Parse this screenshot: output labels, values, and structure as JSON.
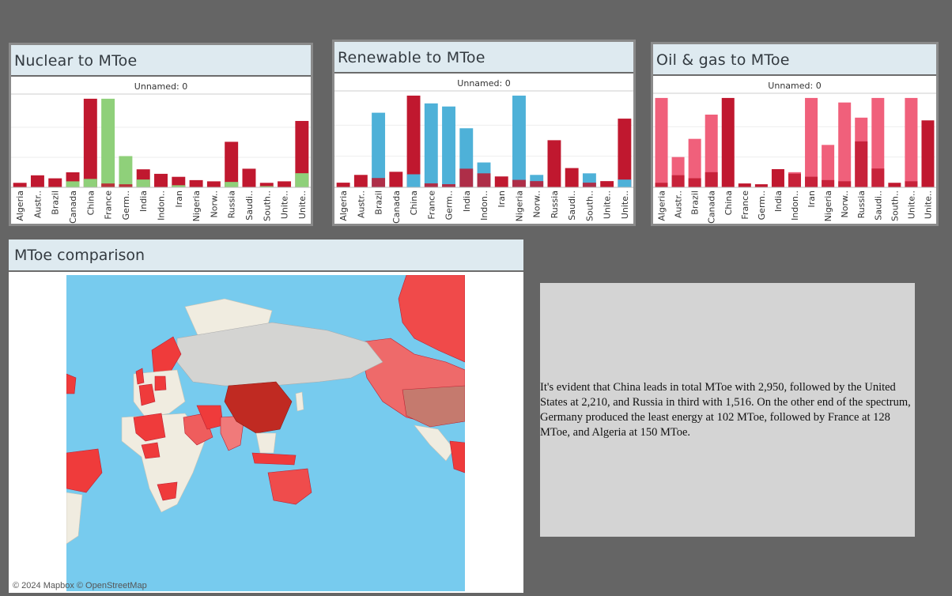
{
  "panels": {
    "nuclear": {
      "title": "Nuclear to MToe"
    },
    "renewable": {
      "title": "Renewable to MToe"
    },
    "oilgas": {
      "title": "Oil & gas to MToe"
    },
    "map": {
      "title": "MToe comparison",
      "credit": "© 2024 Mapbox © OpenStreetMap"
    }
  },
  "summary_text": "It's evident that China leads in total MToe with 2,950, followed by the United States at 2,210, and Russia in third with 1,516. On the other end of the spectrum, Germany produced the least energy at 102 MToe, followed by France at 128 MToe, and Algeria at 150 MToe.",
  "colors": {
    "total": "#c0182f",
    "nuclear": "#8fd07a",
    "renewable": "#4eb1d8",
    "oilgas": "#f0607b",
    "ocean": "#77cbee",
    "land_none": "#f0ece0",
    "land_data": "#f04a4a"
  },
  "chart_data": [
    {
      "type": "bar",
      "title": "Nuclear to MToe",
      "subtitle": "Unnamed: 0",
      "categories": [
        "Algeria",
        "Austr..",
        "Brazil",
        "Canada",
        "China",
        "France",
        "Germ..",
        "India",
        "Indon..",
        "Iran",
        "Nigeria",
        "Norw..",
        "Russia",
        "Saudi..",
        "South..",
        "Unite..",
        "Unite.."
      ],
      "series": [
        {
          "values": [
            150,
            400,
            300,
            500,
            2950,
            128,
            102,
            600,
            450,
            350,
            240,
            200,
            1516,
            620,
            150,
            200,
            2210
          ]
        },
        {
          "values": [
            0,
            0,
            15,
            200,
            280,
            2950,
            1040,
            260,
            0,
            70,
            0,
            0,
            180,
            0,
            40,
            0,
            470
          ]
        }
      ],
      "ylim": [
        0,
        3000
      ]
    },
    {
      "type": "bar",
      "title": "Renewable to MToe",
      "subtitle": "Unnamed: 0",
      "categories": [
        "Algeria",
        "Austr..",
        "Brazil",
        "Canada",
        "China",
        "France",
        "Germ..",
        "India",
        "Indon..",
        "Iran",
        "Nigeria",
        "Norw..",
        "Russia",
        "Saudi..",
        "South..",
        "Unite..",
        "Unite.."
      ],
      "series": [
        {
          "values": [
            150,
            400,
            300,
            500,
            2950,
            128,
            102,
            600,
            450,
            350,
            240,
            200,
            1516,
            620,
            150,
            200,
            2210
          ]
        },
        {
          "values": [
            0,
            0,
            2400,
            0,
            420,
            2700,
            2600,
            1900,
            800,
            0,
            2950,
            400,
            0,
            0,
            450,
            0,
            250
          ]
        }
      ],
      "ylim": [
        0,
        3000
      ]
    },
    {
      "type": "bar",
      "title": "Oil & gas to MToe",
      "subtitle": "Unnamed: 0",
      "categories": [
        "Algeria",
        "Austr..",
        "Brazil",
        "Canada",
        "China",
        "France",
        "Germ..",
        "India",
        "Indon..",
        "Iran",
        "Nigeria",
        "Norw..",
        "Russia",
        "Saudi..",
        "South..",
        "Unite..",
        "Unite.."
      ],
      "series": [
        {
          "values": [
            150,
            400,
            300,
            500,
            2950,
            128,
            102,
            600,
            450,
            350,
            240,
            200,
            1516,
            620,
            150,
            200,
            2210
          ]
        },
        {
          "values": [
            2950,
            1000,
            1600,
            2400,
            0,
            0,
            0,
            0,
            500,
            2950,
            1400,
            2800,
            2300,
            2950,
            0,
            2950,
            0
          ]
        }
      ],
      "ylim": [
        0,
        3000
      ]
    }
  ]
}
